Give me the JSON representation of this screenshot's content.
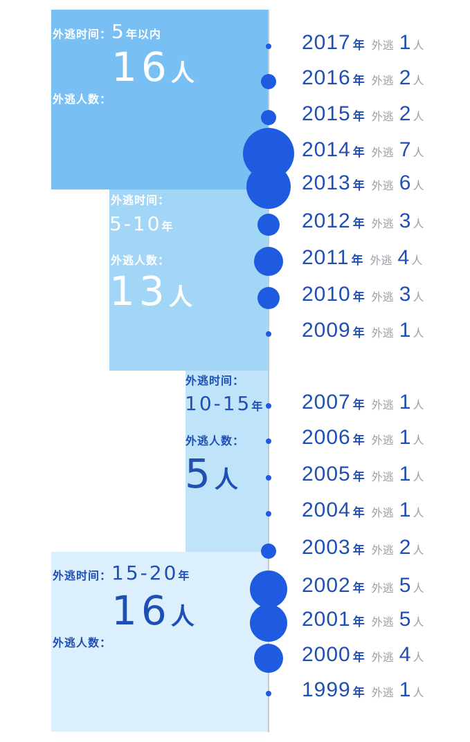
{
  "colors": {
    "block1": "#78c0f3",
    "block2": "#a2d6f7",
    "block3": "#bfe4f9",
    "block4": "#dbf0fc",
    "dot": "#1e5be0",
    "year_text": "#1f4fb5",
    "label_white": "#ffffff",
    "label_blue": "#1f4fb5",
    "grey_text": "#9aa0a6"
  },
  "labels": {
    "duration_prefix": "外逃时间：",
    "count_prefix": "外逃人数：",
    "row_escaped": "外逃",
    "year_suffix": "年",
    "person_suffix": "人"
  },
  "groups": [
    {
      "duration": "5",
      "duration_suffix": "年以内",
      "count": "16",
      "count_suffix": "人"
    },
    {
      "duration": "5-10",
      "duration_suffix": "年",
      "count": "13",
      "count_suffix": "人"
    },
    {
      "duration": "10-15",
      "duration_suffix": "年",
      "count": "5",
      "count_suffix": "人"
    },
    {
      "duration": "15-20",
      "duration_suffix": "年",
      "count": "16",
      "count_suffix": "人"
    }
  ],
  "chart_data": {
    "type": "scatter",
    "x": [
      "2017",
      "2016",
      "2015",
      "2014",
      "2013",
      "2012",
      "2011",
      "2010",
      "2009",
      "2007",
      "2006",
      "2005",
      "2004",
      "2003",
      "2002",
      "2001",
      "2000",
      "1999"
    ],
    "values": [
      1,
      2,
      2,
      7,
      6,
      3,
      4,
      3,
      1,
      1,
      1,
      1,
      1,
      2,
      5,
      5,
      4,
      1
    ]
  }
}
